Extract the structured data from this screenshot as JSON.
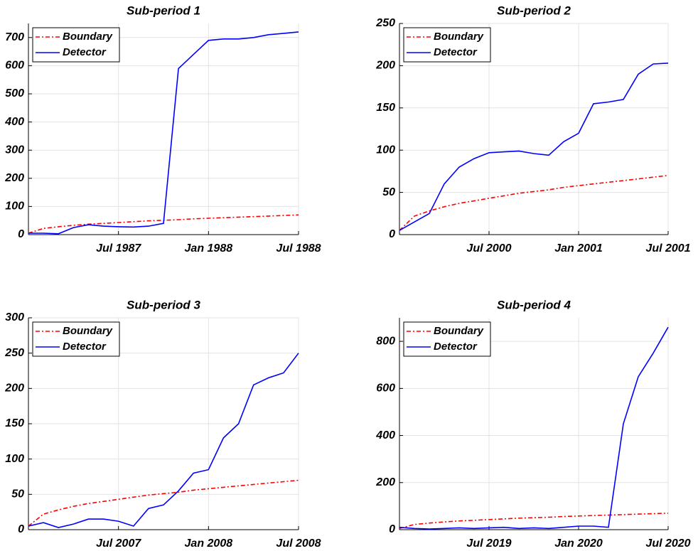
{
  "chart_data": [
    {
      "type": "line",
      "title": "Sub-period 1",
      "x": [
        "1987-01",
        "1987-02",
        "1987-03",
        "1987-04",
        "1987-05",
        "1987-06",
        "1987-07",
        "1987-08",
        "1987-09",
        "1987-10",
        "1987-11",
        "1987-12",
        "1988-01",
        "1988-02",
        "1988-03",
        "1988-04",
        "1988-05",
        "1988-06",
        "1988-07"
      ],
      "series": [
        {
          "name": "Boundary",
          "color": "#ff0000",
          "dash": "dashdot",
          "values": [
            5,
            22,
            28,
            33,
            37,
            40,
            43,
            46,
            49,
            51,
            53,
            56,
            58,
            60,
            62,
            64,
            66,
            68,
            70
          ]
        },
        {
          "name": "Detector",
          "color": "#0000ff",
          "dash": "solid",
          "values": [
            5,
            5,
            3,
            25,
            35,
            30,
            28,
            27,
            30,
            40,
            590,
            640,
            690,
            695,
            695,
            700,
            710,
            715,
            720
          ]
        }
      ],
      "xlim": [
        "1987-01",
        "1988-07"
      ],
      "xticks": [
        {
          "value": "1987-07",
          "label": "Jul 1987"
        },
        {
          "value": "1988-01",
          "label": "Jan 1988"
        },
        {
          "value": "1988-07",
          "label": "Jul 1988"
        }
      ],
      "ylim": [
        0,
        750
      ],
      "yticks": [
        0,
        100,
        200,
        300,
        400,
        500,
        600,
        700
      ],
      "grid": true,
      "legend": "upper-left"
    },
    {
      "type": "line",
      "title": "Sub-period 2",
      "x": [
        "2000-01",
        "2000-02",
        "2000-03",
        "2000-04",
        "2000-05",
        "2000-06",
        "2000-07",
        "2000-08",
        "2000-09",
        "2000-10",
        "2000-11",
        "2000-12",
        "2001-01",
        "2001-02",
        "2001-03",
        "2001-04",
        "2001-05",
        "2001-06",
        "2001-07"
      ],
      "series": [
        {
          "name": "Boundary",
          "color": "#ff0000",
          "dash": "dashdot",
          "values": [
            5,
            22,
            28,
            33,
            37,
            40,
            43,
            46,
            49,
            51,
            53,
            56,
            58,
            60,
            62,
            64,
            66,
            68,
            70
          ]
        },
        {
          "name": "Detector",
          "color": "#0000ff",
          "dash": "solid",
          "values": [
            5,
            15,
            25,
            60,
            80,
            90,
            97,
            98,
            99,
            96,
            94,
            110,
            120,
            155,
            157,
            160,
            190,
            202,
            203
          ]
        }
      ],
      "xlim": [
        "2000-01",
        "2001-07"
      ],
      "xticks": [
        {
          "value": "2000-07",
          "label": "Jul 2000"
        },
        {
          "value": "2001-01",
          "label": "Jan 2001"
        },
        {
          "value": "2001-07",
          "label": "Jul 2001"
        }
      ],
      "ylim": [
        0,
        250
      ],
      "yticks": [
        0,
        50,
        100,
        150,
        200,
        250
      ],
      "grid": true,
      "legend": "upper-left"
    },
    {
      "type": "line",
      "title": "Sub-period 3",
      "x": [
        "2007-01",
        "2007-02",
        "2007-03",
        "2007-04",
        "2007-05",
        "2007-06",
        "2007-07",
        "2007-08",
        "2007-09",
        "2007-10",
        "2007-11",
        "2007-12",
        "2008-01",
        "2008-02",
        "2008-03",
        "2008-04",
        "2008-05",
        "2008-06",
        "2008-07"
      ],
      "series": [
        {
          "name": "Boundary",
          "color": "#ff0000",
          "dash": "dashdot",
          "values": [
            5,
            22,
            28,
            33,
            37,
            40,
            43,
            46,
            49,
            51,
            53,
            56,
            58,
            60,
            62,
            64,
            66,
            68,
            70
          ]
        },
        {
          "name": "Detector",
          "color": "#0000ff",
          "dash": "solid",
          "values": [
            5,
            10,
            3,
            8,
            15,
            15,
            12,
            5,
            30,
            35,
            55,
            80,
            85,
            130,
            150,
            205,
            215,
            222,
            250
          ]
        }
      ],
      "xlim": [
        "2007-01",
        "2008-07"
      ],
      "xticks": [
        {
          "value": "2007-07",
          "label": "Jul 2007"
        },
        {
          "value": "2008-01",
          "label": "Jan 2008"
        },
        {
          "value": "2008-07",
          "label": "Jul 2008"
        }
      ],
      "ylim": [
        0,
        300
      ],
      "yticks": [
        0,
        50,
        100,
        150,
        200,
        250,
        300
      ],
      "grid": true,
      "legend": "upper-left"
    },
    {
      "type": "line",
      "title": "Sub-period 4",
      "x": [
        "2019-01",
        "2019-02",
        "2019-03",
        "2019-04",
        "2019-05",
        "2019-06",
        "2019-07",
        "2019-08",
        "2019-09",
        "2019-10",
        "2019-11",
        "2019-12",
        "2020-01",
        "2020-02",
        "2020-03",
        "2020-04",
        "2020-05",
        "2020-06",
        "2020-07"
      ],
      "series": [
        {
          "name": "Boundary",
          "color": "#ff0000",
          "dash": "dashdot",
          "values": [
            5,
            22,
            28,
            33,
            37,
            40,
            43,
            46,
            49,
            51,
            53,
            56,
            58,
            60,
            62,
            64,
            66,
            68,
            70
          ]
        },
        {
          "name": "Detector",
          "color": "#0000ff",
          "dash": "solid",
          "values": [
            10,
            5,
            3,
            5,
            8,
            5,
            8,
            10,
            5,
            8,
            5,
            10,
            15,
            15,
            10,
            450,
            650,
            750,
            860
          ]
        }
      ],
      "xlim": [
        "2019-01",
        "2020-07"
      ],
      "xticks": [
        {
          "value": "2019-07",
          "label": "Jul 2019"
        },
        {
          "value": "2020-01",
          "label": "Jan 2020"
        },
        {
          "value": "2020-07",
          "label": "Jul 2020"
        }
      ],
      "ylim": [
        0,
        900
      ],
      "yticks": [
        0,
        200,
        400,
        600,
        800
      ],
      "grid": true,
      "legend": "upper-left"
    }
  ]
}
